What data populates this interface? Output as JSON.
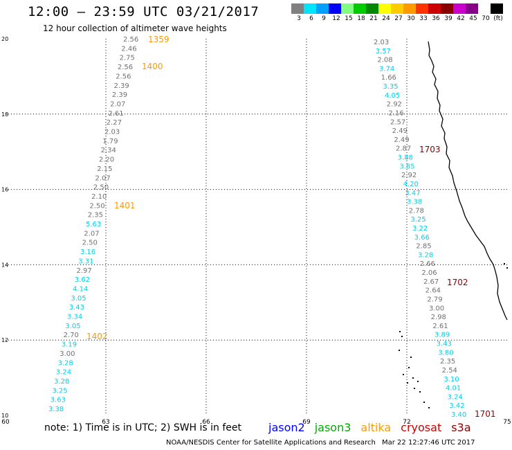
{
  "header": {
    "title": "12:00 – 23:59 UTC 03/21/2017",
    "subtitle": "12 hour collection of altimeter wave heights"
  },
  "legend": {
    "unit": "(ft)",
    "colors": [
      "#808080",
      "#00e5ff",
      "#00a0ff",
      "#0000ff",
      "#80ff80",
      "#00cc00",
      "#008800",
      "#ffff00",
      "#ffcc00",
      "#ff9900",
      "#ff3300",
      "#cc0000",
      "#880000",
      "#cc00cc",
      "#880088",
      "#ffffff",
      "#000000"
    ],
    "labels": [
      "3",
      "6",
      "9",
      "12",
      "15",
      "18",
      "21",
      "24",
      "27",
      "30",
      "33",
      "36",
      "39",
      "42",
      "45",
      "70",
      "(ft)"
    ]
  },
  "axes": {
    "lon_ticks": [
      "60",
      "63",
      "66",
      "69",
      "72",
      "75"
    ],
    "lat_ticks": [
      "10",
      "12",
      "14",
      "16",
      "18",
      "20"
    ]
  },
  "tracks": {
    "left": {
      "labels": [
        {
          "text": "1359",
          "color": "#ff9900"
        },
        {
          "text": "1400",
          "color": "#ff9900"
        },
        {
          "text": "1401",
          "color": "#ff9900"
        },
        {
          "text": "1402",
          "color": "#ff9900"
        }
      ],
      "values": [
        {
          "v": "2.56",
          "c": "#707070"
        },
        {
          "v": "2.46",
          "c": "#707070"
        },
        {
          "v": "2.75",
          "c": "#707070"
        },
        {
          "v": "2.56",
          "c": "#707070"
        },
        {
          "v": "2.56",
          "c": "#707070"
        },
        {
          "v": "2.39",
          "c": "#707070"
        },
        {
          "v": "2.39",
          "c": "#707070"
        },
        {
          "v": "2.07",
          "c": "#707070"
        },
        {
          "v": "2.61",
          "c": "#707070"
        },
        {
          "v": "2.27",
          "c": "#707070"
        },
        {
          "v": "2.03",
          "c": "#707070"
        },
        {
          "v": "1.79",
          "c": "#707070"
        },
        {
          "v": "2.34",
          "c": "#707070"
        },
        {
          "v": "2.20",
          "c": "#707070"
        },
        {
          "v": "2.15",
          "c": "#707070"
        },
        {
          "v": "2.07",
          "c": "#707070"
        },
        {
          "v": "2.50",
          "c": "#707070"
        },
        {
          "v": "2.10",
          "c": "#707070"
        },
        {
          "v": "2.50",
          "c": "#707070"
        },
        {
          "v": "2.35",
          "c": "#707070"
        },
        {
          "v": "5.63",
          "c": "#00d0e8"
        },
        {
          "v": "2.07",
          "c": "#707070"
        },
        {
          "v": "2.50",
          "c": "#707070"
        },
        {
          "v": "3.16",
          "c": "#00d0e8"
        },
        {
          "v": "3.31",
          "c": "#00d0e8"
        },
        {
          "v": "2.97",
          "c": "#707070"
        },
        {
          "v": "3.62",
          "c": "#00d0e8"
        },
        {
          "v": "4.14",
          "c": "#00d0e8"
        },
        {
          "v": "3.05",
          "c": "#00d0e8"
        },
        {
          "v": "3.43",
          "c": "#00d0e8"
        },
        {
          "v": "3.34",
          "c": "#00d0e8"
        },
        {
          "v": "3.05",
          "c": "#00d0e8"
        },
        {
          "v": "2.70",
          "c": "#707070"
        },
        {
          "v": "3.19",
          "c": "#00d0e8"
        },
        {
          "v": "3.00",
          "c": "#707070"
        },
        {
          "v": "3.28",
          "c": "#00d0e8"
        },
        {
          "v": "3.24",
          "c": "#00d0e8"
        },
        {
          "v": "3.28",
          "c": "#00d0e8"
        },
        {
          "v": "3.25",
          "c": "#00d0e8"
        },
        {
          "v": "3.63",
          "c": "#00d0e8"
        },
        {
          "v": "3.38",
          "c": "#00d0e8"
        }
      ]
    },
    "right": {
      "labels": [
        {
          "text": "1703",
          "color": "#880000"
        },
        {
          "text": "1702",
          "color": "#880000"
        },
        {
          "text": "1701",
          "color": "#880000"
        }
      ],
      "values": [
        {
          "v": "2.03",
          "c": "#707070"
        },
        {
          "v": "3.57",
          "c": "#00d0e8"
        },
        {
          "v": "2.08",
          "c": "#707070"
        },
        {
          "v": "3.74",
          "c": "#00d0e8"
        },
        {
          "v": "1.66",
          "c": "#707070"
        },
        {
          "v": "3.35",
          "c": "#00d0e8"
        },
        {
          "v": "4.05",
          "c": "#00d0e8"
        },
        {
          "v": "2.92",
          "c": "#707070"
        },
        {
          "v": "2.16",
          "c": "#707070"
        },
        {
          "v": "2.57",
          "c": "#707070"
        },
        {
          "v": "2.49",
          "c": "#707070"
        },
        {
          "v": "2.49",
          "c": "#707070"
        },
        {
          "v": "2.87",
          "c": "#707070"
        },
        {
          "v": "3.88",
          "c": "#00d0e8"
        },
        {
          "v": "3.85",
          "c": "#00d0e8"
        },
        {
          "v": "2.92",
          "c": "#707070"
        },
        {
          "v": "4.20",
          "c": "#00d0e8"
        },
        {
          "v": "3.47",
          "c": "#00d0e8"
        },
        {
          "v": "3.38",
          "c": "#00d0e8"
        },
        {
          "v": "2.78",
          "c": "#707070"
        },
        {
          "v": "3.25",
          "c": "#00d0e8"
        },
        {
          "v": "3.22",
          "c": "#00d0e8"
        },
        {
          "v": "3.66",
          "c": "#00d0e8"
        },
        {
          "v": "2.85",
          "c": "#707070"
        },
        {
          "v": "3.28",
          "c": "#00d0e8"
        },
        {
          "v": "2.66",
          "c": "#707070"
        },
        {
          "v": "2.06",
          "c": "#707070"
        },
        {
          "v": "2.67",
          "c": "#707070"
        },
        {
          "v": "2.64",
          "c": "#707070"
        },
        {
          "v": "2.79",
          "c": "#707070"
        },
        {
          "v": "3.00",
          "c": "#707070"
        },
        {
          "v": "2.98",
          "c": "#707070"
        },
        {
          "v": "2.61",
          "c": "#707070"
        },
        {
          "v": "3.89",
          "c": "#00d0e8"
        },
        {
          "v": "3.43",
          "c": "#00d0e8"
        },
        {
          "v": "3.80",
          "c": "#00d0e8"
        },
        {
          "v": "2.35",
          "c": "#707070"
        },
        {
          "v": "2.54",
          "c": "#707070"
        },
        {
          "v": "3.10",
          "c": "#00d0e8"
        },
        {
          "v": "4.01",
          "c": "#00d0e8"
        },
        {
          "v": "3.24",
          "c": "#00d0e8"
        },
        {
          "v": "3.42",
          "c": "#00d0e8"
        },
        {
          "v": "3.40",
          "c": "#00d0e8"
        }
      ]
    }
  },
  "footer": {
    "note": "note: 1) Time is in UTC; 2) SWH is in feet",
    "satellites": [
      {
        "name": "jason2",
        "color": "#0000ff"
      },
      {
        "name": "jason3",
        "color": "#00aa00"
      },
      {
        "name": "altika",
        "color": "#ff9900"
      },
      {
        "name": "cryosat",
        "color": "#cc0000"
      },
      {
        "name": "s3a",
        "color": "#880000"
      }
    ],
    "credit": "NOAA/NESDIS Center for Satellite Applications and Research",
    "timestamp": "Mar 22 12:27:46 UTC 2017"
  }
}
